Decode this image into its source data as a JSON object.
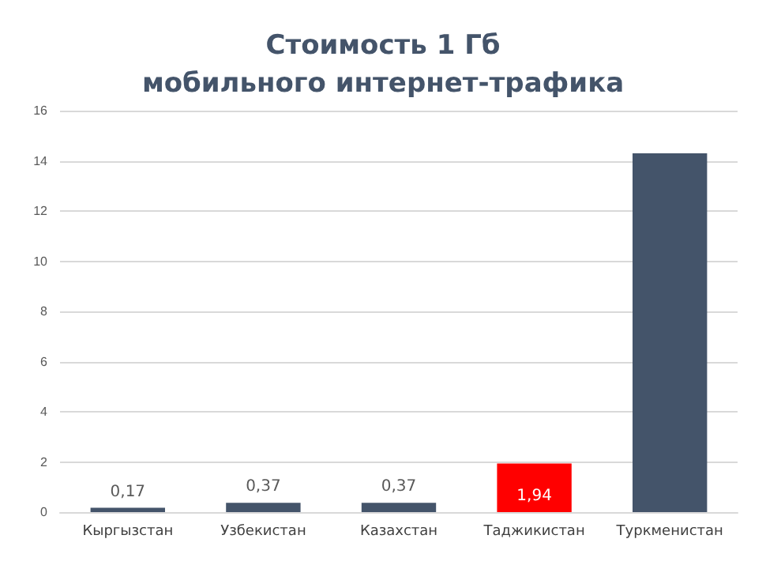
{
  "chart_data": {
    "type": "bar",
    "title": "Стоимость 1 Гб\nмобильного интернет-трафика",
    "categories": [
      "Кыргызстан",
      "Узбекистан",
      "Казахстан",
      "Таджикистан",
      "Туркменистан"
    ],
    "values": [
      0.17,
      0.37,
      0.37,
      1.94,
      14.3
    ],
    "value_labels": [
      "0,17",
      "0,37",
      "0,37",
      "1,94",
      null
    ],
    "colors": [
      "#44546a",
      "#44546a",
      "#44546a",
      "#ff0000",
      "#44546a"
    ],
    "ylim": [
      0,
      16
    ],
    "yticks": [
      0,
      2,
      4,
      6,
      8,
      10,
      12,
      14,
      16
    ],
    "grid": "y"
  }
}
